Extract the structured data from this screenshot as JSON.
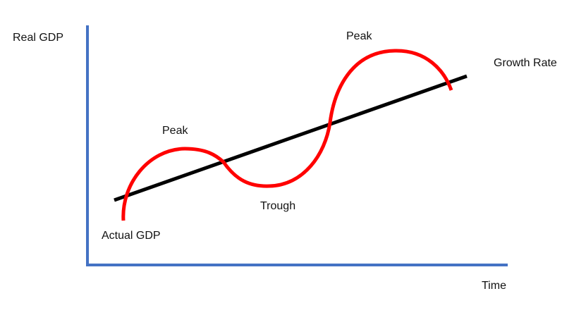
{
  "labels": {
    "y_axis": "Real GDP",
    "x_axis": "Time",
    "trend_line": "Growth Rate",
    "actual_curve": "Actual GDP",
    "peak_1": "Peak",
    "trough": "Trough",
    "peak_2": "Peak"
  },
  "colors": {
    "axes": "#4472c4",
    "trend_line": "#000000",
    "actual_curve": "#ff0000",
    "text": "#111111"
  }
}
